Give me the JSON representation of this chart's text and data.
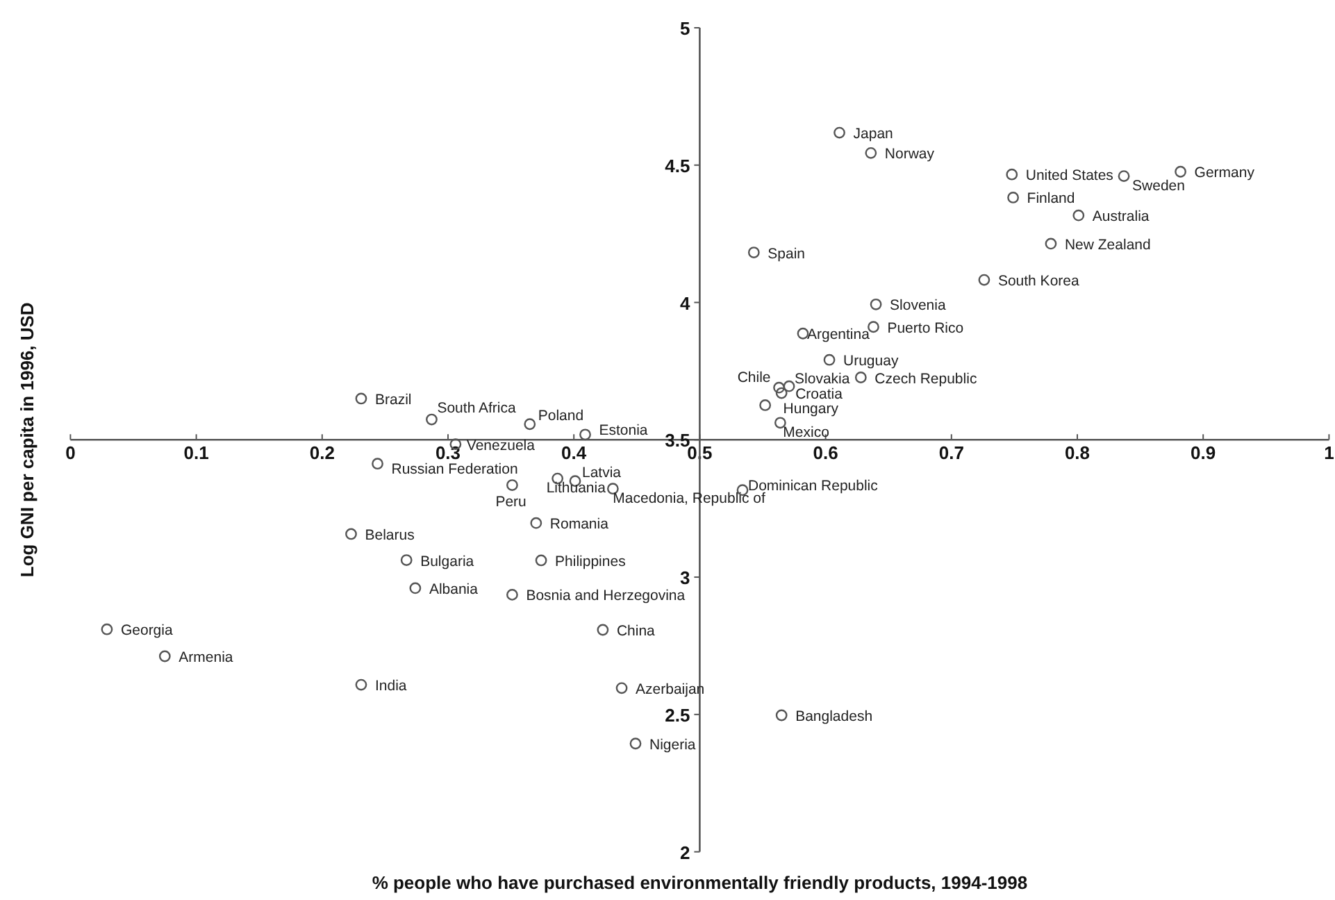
{
  "chart_data": {
    "type": "scatter",
    "xlabel": "% people who have purchased environmentally friendly products, 1994-1998",
    "ylabel": "Log GNI per capita in 1996, USD",
    "xlim": [
      0,
      1
    ],
    "ylim": [
      2,
      5
    ],
    "xticks": [
      0,
      0.1,
      0.2,
      0.3,
      0.4,
      0.5,
      0.6,
      0.7,
      0.8,
      0.9,
      1
    ],
    "yticks": [
      2,
      2.5,
      3,
      3.5,
      4,
      4.5,
      5
    ],
    "grid": false,
    "marker": "circle",
    "series": [
      {
        "color": "#555555",
        "x": [
          0.231,
          0.287,
          0.365,
          0.409,
          0.306,
          0.611,
          0.636,
          0.748,
          0.837,
          0.882,
          0.749,
          0.801,
          0.779,
          0.543,
          0.726,
          0.64,
          0.638,
          0.582,
          0.603,
          0.628,
          0.563,
          0.571,
          0.565,
          0.552,
          0.564,
          0.244,
          0.401,
          0.387,
          0.351,
          0.431,
          0.534,
          0.37,
          0.223,
          0.267,
          0.374,
          0.274,
          0.351,
          0.423,
          0.029,
          0.075,
          0.231,
          0.438,
          0.565,
          0.449
        ],
        "values": [
          3.65,
          3.574,
          3.557,
          3.519,
          3.484,
          4.618,
          4.544,
          4.466,
          4.46,
          4.476,
          4.382,
          4.317,
          4.214,
          4.182,
          4.082,
          3.993,
          3.911,
          3.887,
          3.791,
          3.727,
          3.69,
          3.695,
          3.67,
          3.626,
          3.562,
          3.413,
          3.35,
          3.359,
          3.335,
          3.322,
          3.317,
          3.197,
          3.157,
          3.062,
          3.061,
          2.96,
          2.936,
          2.808,
          2.81,
          2.712,
          2.608,
          2.596,
          2.497,
          2.394
        ]
      }
    ],
    "annotations": [
      {
        "text": "Brazil",
        "x": 0.231,
        "y": 3.65
      },
      {
        "text": "South Africa",
        "x": 0.287,
        "y": 3.574
      },
      {
        "text": "Poland",
        "x": 0.365,
        "y": 3.557
      },
      {
        "text": "Estonia",
        "x": 0.409,
        "y": 3.519
      },
      {
        "text": "Venezuela",
        "x": 0.306,
        "y": 3.484
      },
      {
        "text": "Japan",
        "x": 0.611,
        "y": 4.618
      },
      {
        "text": "Norway",
        "x": 0.636,
        "y": 4.544
      },
      {
        "text": "United States",
        "x": 0.748,
        "y": 4.466
      },
      {
        "text": "Sweden",
        "x": 0.837,
        "y": 4.46
      },
      {
        "text": "Germany",
        "x": 0.882,
        "y": 4.476
      },
      {
        "text": "Finland",
        "x": 0.749,
        "y": 4.382
      },
      {
        "text": "Australia",
        "x": 0.801,
        "y": 4.317
      },
      {
        "text": "New Zealand",
        "x": 0.779,
        "y": 4.214
      },
      {
        "text": "Spain",
        "x": 0.543,
        "y": 4.182
      },
      {
        "text": "South Korea",
        "x": 0.726,
        "y": 4.082
      },
      {
        "text": "Slovenia",
        "x": 0.64,
        "y": 3.993
      },
      {
        "text": "Puerto Rico",
        "x": 0.638,
        "y": 3.911
      },
      {
        "text": "Argentina",
        "x": 0.582,
        "y": 3.887
      },
      {
        "text": "Uruguay",
        "x": 0.603,
        "y": 3.791
      },
      {
        "text": "Czech Republic",
        "x": 0.628,
        "y": 3.727
      },
      {
        "text": "Chile",
        "x": 0.563,
        "y": 3.69
      },
      {
        "text": "Slovakia",
        "x": 0.571,
        "y": 3.695
      },
      {
        "text": "Croatia",
        "x": 0.565,
        "y": 3.67
      },
      {
        "text": "Hungary",
        "x": 0.552,
        "y": 3.626
      },
      {
        "text": "Mexico",
        "x": 0.564,
        "y": 3.562
      },
      {
        "text": "Russian Federation",
        "x": 0.244,
        "y": 3.413
      },
      {
        "text": "Latvia",
        "x": 0.401,
        "y": 3.35
      },
      {
        "text": "Lithuania",
        "x": 0.387,
        "y": 3.359
      },
      {
        "text": "Peru",
        "x": 0.351,
        "y": 3.335
      },
      {
        "text": "Macedonia, Republic of",
        "x": 0.431,
        "y": 3.322
      },
      {
        "text": "Dominican Republic",
        "x": 0.534,
        "y": 3.317
      },
      {
        "text": "Romania",
        "x": 0.37,
        "y": 3.197
      },
      {
        "text": "Belarus",
        "x": 0.223,
        "y": 3.157
      },
      {
        "text": "Bulgaria",
        "x": 0.267,
        "y": 3.062
      },
      {
        "text": "Philippines",
        "x": 0.374,
        "y": 3.061
      },
      {
        "text": "Albania",
        "x": 0.274,
        "y": 2.96
      },
      {
        "text": "Bosnia and Herzegovina",
        "x": 0.351,
        "y": 2.936
      },
      {
        "text": "China",
        "x": 0.423,
        "y": 2.808
      },
      {
        "text": "Georgia",
        "x": 0.029,
        "y": 2.81
      },
      {
        "text": "Armenia",
        "x": 0.075,
        "y": 2.712
      },
      {
        "text": "India",
        "x": 0.231,
        "y": 2.608
      },
      {
        "text": "Azerbaijan",
        "x": 0.438,
        "y": 2.596
      },
      {
        "text": "Bangladesh",
        "x": 0.565,
        "y": 2.497
      },
      {
        "text": "Nigeria",
        "x": 0.449,
        "y": 2.394
      }
    ]
  }
}
